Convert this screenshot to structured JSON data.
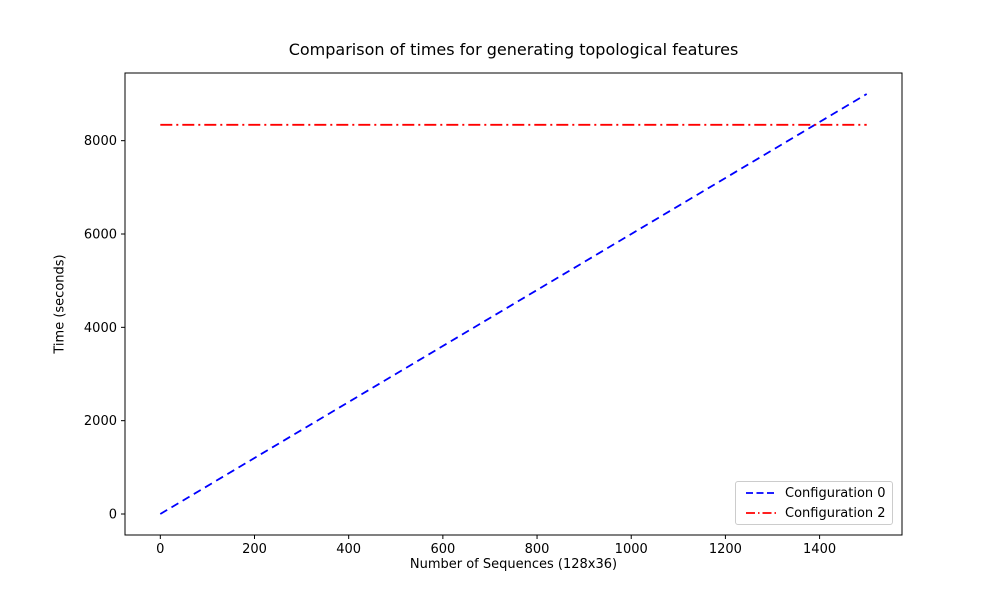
{
  "chart_data": {
    "type": "line",
    "title": "Comparison of times for generating topological features",
    "xlabel": "Number of Sequences (128x36)",
    "ylabel": "Time (seconds)",
    "xlim": [
      -75,
      1575
    ],
    "ylim": [
      -450,
      9450
    ],
    "xticks": [
      0,
      200,
      400,
      600,
      800,
      1000,
      1200,
      1400
    ],
    "yticks": [
      0,
      2000,
      4000,
      6000,
      8000
    ],
    "grid": false,
    "legend_position": "lower right",
    "axis_color": "#000000",
    "series": [
      {
        "name": "Configuration 0",
        "color": "#0000ff",
        "style": "dashed",
        "x": [
          0,
          1500
        ],
        "y": [
          0,
          9000
        ]
      },
      {
        "name": "Configuration 2",
        "color": "#ff0000",
        "style": "dashdot",
        "x": [
          0,
          1500
        ],
        "y": [
          8340,
          8340
        ]
      }
    ]
  }
}
